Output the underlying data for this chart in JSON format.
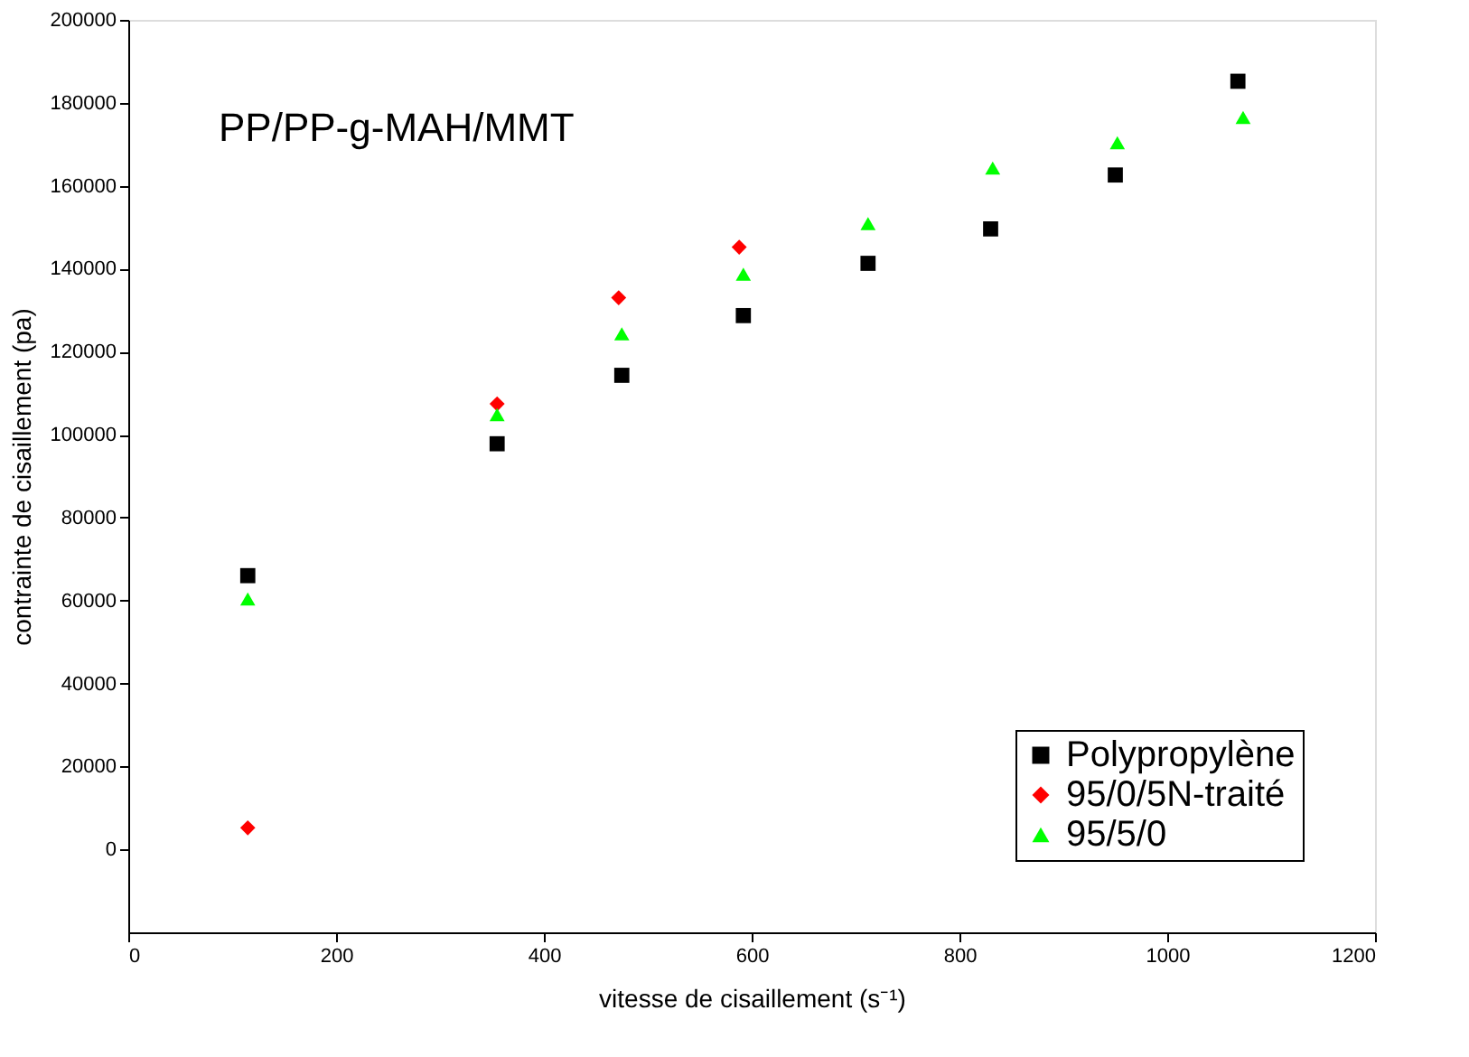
{
  "chart_data": {
    "type": "scatter",
    "xlabel": "vitesse de cisaillement (s⁻¹)",
    "ylabel": "contrainte de cisaillement (pa)",
    "annotations": [
      "PP/PP-g-MAH/MMT"
    ],
    "xlim": [
      0,
      1200
    ],
    "xticks": [
      0,
      200,
      400,
      600,
      800,
      1000,
      1200
    ],
    "ylim": [
      -20000,
      200000
    ],
    "yticks": [
      0,
      20000,
      40000,
      60000,
      80000,
      100000,
      120000,
      140000,
      160000,
      180000,
      200000
    ],
    "grid": false,
    "legend": "bottom right",
    "series": [
      {
        "name": "Polypropylène",
        "color": "#000000",
        "marker": "square",
        "x": [
          115,
          355,
          475,
          592,
          712,
          830,
          950,
          1068
        ],
        "values": [
          66000,
          97800,
          114300,
          128700,
          141300,
          149600,
          162600,
          185200
        ]
      },
      {
        "name": "95/0/5N-traité",
        "color": "#ff0000",
        "marker": "diamond",
        "x": [
          115,
          355,
          472,
          588
        ],
        "values": [
          5200,
          107400,
          133000,
          145200
        ]
      },
      {
        "name": "95/5/0",
        "color": "#00ff00",
        "marker": "triangle",
        "x": [
          115,
          355,
          475,
          592,
          712,
          832,
          952,
          1073
        ],
        "values": [
          60400,
          104800,
          124300,
          138700,
          150900,
          164300,
          170400,
          176500
        ]
      }
    ]
  }
}
